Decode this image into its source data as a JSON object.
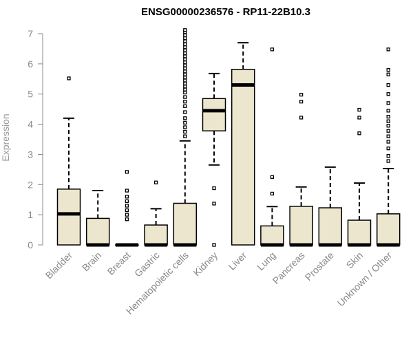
{
  "chart_data": {
    "type": "boxplot",
    "title": "ENSG00000236576 - RP11-22B10.3",
    "xlabel": "",
    "ylabel": "Expression",
    "ylim": [
      0,
      7
    ],
    "yticks": [
      0,
      1,
      2,
      3,
      4,
      5,
      6,
      7
    ],
    "colors": {
      "box_fill": "#EDE6CF",
      "stroke": "#000000",
      "axis": "#888888"
    },
    "categories": [
      "Bladder",
      "Brain",
      "Breast",
      "Gastric",
      "Hematopoietic cells",
      "Kidney",
      "Liver",
      "Lung",
      "Pancreas",
      "Prostate",
      "Skin",
      "Unknown / Other"
    ],
    "boxes": [
      {
        "category": "Bladder",
        "q1": 0,
        "median": 1.03,
        "q3": 1.85,
        "whisker_low": 0,
        "whisker_high": 4.2,
        "outliers": [
          5.52
        ]
      },
      {
        "category": "Brain",
        "q1": 0,
        "median": 0,
        "q3": 0.88,
        "whisker_low": 0,
        "whisker_high": 1.8,
        "outliers": []
      },
      {
        "category": "Breast",
        "q1": 0,
        "median": 0,
        "q3": 0,
        "whisker_low": 0,
        "whisker_high": 0,
        "outliers": [
          0.85,
          1.0,
          1.15,
          1.3,
          1.45,
          1.6,
          1.8,
          2.42
        ]
      },
      {
        "category": "Gastric",
        "q1": 0,
        "median": 0,
        "q3": 0.66,
        "whisker_low": 0,
        "whisker_high": 1.2,
        "outliers": [
          2.07
        ]
      },
      {
        "category": "Hematopoietic cells",
        "q1": 0,
        "median": 0,
        "q3": 1.38,
        "whisker_low": 0,
        "whisker_high": 3.45,
        "outliers": [
          3.6,
          3.75,
          3.9,
          4.05,
          4.2,
          4.4,
          4.6,
          4.75,
          4.9,
          5.05,
          5.15,
          5.25,
          5.35,
          5.45,
          5.55,
          5.65,
          5.75,
          5.85,
          5.95,
          6.05,
          6.15,
          6.25,
          6.35,
          6.45,
          6.55,
          6.65,
          6.75,
          6.85,
          6.95,
          7.05,
          7.12
        ]
      },
      {
        "category": "Kidney",
        "q1": 3.78,
        "median": 4.45,
        "q3": 4.85,
        "whisker_low": 2.65,
        "whisker_high": 5.68,
        "outliers": [
          0,
          1.37,
          1.88
        ]
      },
      {
        "category": "Liver",
        "q1": 0,
        "median": 5.3,
        "q3": 5.82,
        "whisker_low": 0,
        "whisker_high": 6.7,
        "outliers": []
      },
      {
        "category": "Lung",
        "q1": 0,
        "median": 0,
        "q3": 0.63,
        "whisker_low": 0,
        "whisker_high": 1.27,
        "outliers": [
          1.7,
          2.25,
          6.48
        ]
      },
      {
        "category": "Pancreas",
        "q1": 0,
        "median": 0,
        "q3": 1.28,
        "whisker_low": 0,
        "whisker_high": 1.92,
        "outliers": [
          4.22,
          4.75,
          4.98
        ]
      },
      {
        "category": "Prostate",
        "q1": 0,
        "median": 0,
        "q3": 1.23,
        "whisker_low": 0,
        "whisker_high": 2.58,
        "outliers": []
      },
      {
        "category": "Skin",
        "q1": 0,
        "median": 0,
        "q3": 0.82,
        "whisker_low": 0,
        "whisker_high": 2.05,
        "outliers": [
          3.7,
          4.22,
          4.48
        ]
      },
      {
        "category": "Unknown / Other",
        "q1": 0,
        "median": 0,
        "q3": 1.03,
        "whisker_low": 0,
        "whisker_high": 2.53,
        "outliers": [
          2.78,
          2.95,
          3.2,
          3.42,
          3.6,
          3.78,
          3.95,
          4.1,
          4.25,
          4.45,
          4.7,
          5.0,
          5.3,
          5.65,
          5.8,
          6.48
        ]
      }
    ]
  }
}
